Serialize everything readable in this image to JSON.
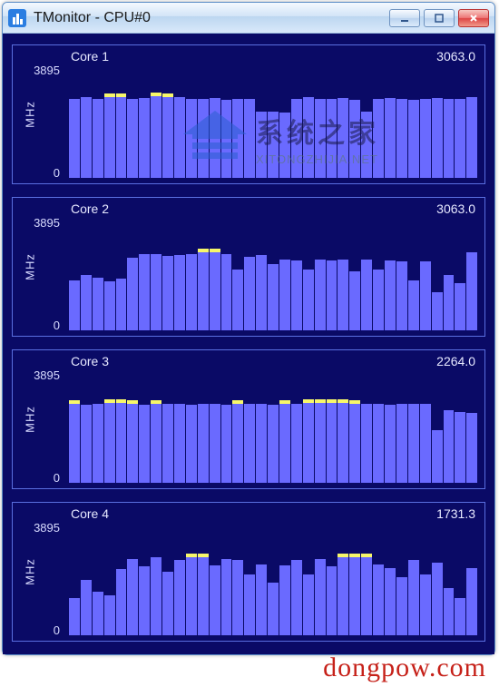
{
  "window": {
    "title": "TMonitor - CPU#0",
    "bg": "#0a0a66",
    "border": "#5a6fe0",
    "bar_color": "#6a6aff",
    "cap_color": "#f7f76a",
    "text_color": "#e6e8ff"
  },
  "yaxis": {
    "max_label": "3895",
    "min_label": "0",
    "unit": "MHz",
    "ymax": 4200
  },
  "cores": [
    {
      "name": "Core 1",
      "value": "3063.0",
      "bars": [
        {
          "v": 3000
        },
        {
          "v": 3050
        },
        {
          "v": 3000
        },
        {
          "v": 3050,
          "cap": true
        },
        {
          "v": 3050,
          "cap": true
        },
        {
          "v": 3000
        },
        {
          "v": 3020
        },
        {
          "v": 3100,
          "cap": true
        },
        {
          "v": 3080,
          "cap": true
        },
        {
          "v": 3050
        },
        {
          "v": 2980
        },
        {
          "v": 3000
        },
        {
          "v": 3020
        },
        {
          "v": 2960
        },
        {
          "v": 3000
        },
        {
          "v": 2980
        },
        {
          "v": 2500
        },
        {
          "v": 2520
        },
        {
          "v": 2480
        },
        {
          "v": 3000
        },
        {
          "v": 3050
        },
        {
          "v": 3000
        },
        {
          "v": 2980
        },
        {
          "v": 3020
        },
        {
          "v": 2960
        },
        {
          "v": 2500
        },
        {
          "v": 2980
        },
        {
          "v": 3020
        },
        {
          "v": 3000
        },
        {
          "v": 2960
        },
        {
          "v": 3000
        },
        {
          "v": 3020
        },
        {
          "v": 3000
        },
        {
          "v": 2980
        },
        {
          "v": 3050
        }
      ]
    },
    {
      "name": "Core 2",
      "value": "3063.0",
      "bars": [
        {
          "v": 1900
        },
        {
          "v": 2100
        },
        {
          "v": 2000
        },
        {
          "v": 1850
        },
        {
          "v": 1950
        },
        {
          "v": 2750
        },
        {
          "v": 2900
        },
        {
          "v": 2880
        },
        {
          "v": 2820
        },
        {
          "v": 2860
        },
        {
          "v": 2900
        },
        {
          "v": 2950,
          "cap": true
        },
        {
          "v": 2950,
          "cap": true
        },
        {
          "v": 2880
        },
        {
          "v": 2300
        },
        {
          "v": 2800
        },
        {
          "v": 2850
        },
        {
          "v": 2500
        },
        {
          "v": 2700
        },
        {
          "v": 2650
        },
        {
          "v": 2300
        },
        {
          "v": 2700
        },
        {
          "v": 2650
        },
        {
          "v": 2680
        },
        {
          "v": 2250
        },
        {
          "v": 2700
        },
        {
          "v": 2300
        },
        {
          "v": 2650
        },
        {
          "v": 2620
        },
        {
          "v": 1900
        },
        {
          "v": 2600
        },
        {
          "v": 1450
        },
        {
          "v": 2100
        },
        {
          "v": 1800
        },
        {
          "v": 2950
        }
      ]
    },
    {
      "name": "Core 3",
      "value": "2264.0",
      "bars": [
        {
          "v": 3000,
          "cap": true
        },
        {
          "v": 2950
        },
        {
          "v": 2980
        },
        {
          "v": 3020,
          "cap": true
        },
        {
          "v": 3020,
          "cap": true
        },
        {
          "v": 3000,
          "cap": true
        },
        {
          "v": 2960
        },
        {
          "v": 3000,
          "cap": true
        },
        {
          "v": 2980
        },
        {
          "v": 3000
        },
        {
          "v": 2960
        },
        {
          "v": 2980
        },
        {
          "v": 3000
        },
        {
          "v": 2960
        },
        {
          "v": 3000,
          "cap": true
        },
        {
          "v": 2980
        },
        {
          "v": 3000
        },
        {
          "v": 2960
        },
        {
          "v": 3000,
          "cap": true
        },
        {
          "v": 2980
        },
        {
          "v": 3020,
          "cap": true
        },
        {
          "v": 3020,
          "cap": true
        },
        {
          "v": 3020,
          "cap": true
        },
        {
          "v": 3020,
          "cap": true
        },
        {
          "v": 3000,
          "cap": true
        },
        {
          "v": 2980
        },
        {
          "v": 3000
        },
        {
          "v": 2960
        },
        {
          "v": 3000
        },
        {
          "v": 2980
        },
        {
          "v": 3000
        },
        {
          "v": 2000
        },
        {
          "v": 2750
        },
        {
          "v": 2700
        },
        {
          "v": 2650
        }
      ]
    },
    {
      "name": "Core 4",
      "value": "1731.3",
      "bars": [
        {
          "v": 1400
        },
        {
          "v": 2100
        },
        {
          "v": 1650
        },
        {
          "v": 1500
        },
        {
          "v": 2500
        },
        {
          "v": 2900
        },
        {
          "v": 2600
        },
        {
          "v": 2950
        },
        {
          "v": 2400
        },
        {
          "v": 2850
        },
        {
          "v": 2950,
          "cap": true
        },
        {
          "v": 2950,
          "cap": true
        },
        {
          "v": 2650
        },
        {
          "v": 2900
        },
        {
          "v": 2850
        },
        {
          "v": 2300
        },
        {
          "v": 2700
        },
        {
          "v": 2000
        },
        {
          "v": 2650
        },
        {
          "v": 2850
        },
        {
          "v": 2300
        },
        {
          "v": 2900
        },
        {
          "v": 2600
        },
        {
          "v": 2950,
          "cap": true
        },
        {
          "v": 2950,
          "cap": true
        },
        {
          "v": 2950,
          "cap": true
        },
        {
          "v": 2700
        },
        {
          "v": 2550
        },
        {
          "v": 2200
        },
        {
          "v": 2850
        },
        {
          "v": 2300
        },
        {
          "v": 2750
        },
        {
          "v": 1800
        },
        {
          "v": 1400
        },
        {
          "v": 2550
        }
      ]
    }
  ],
  "watermark": {
    "cn": "系统之家",
    "en": "XITONGZHIJIA.NET",
    "url": "dongpow.com"
  }
}
